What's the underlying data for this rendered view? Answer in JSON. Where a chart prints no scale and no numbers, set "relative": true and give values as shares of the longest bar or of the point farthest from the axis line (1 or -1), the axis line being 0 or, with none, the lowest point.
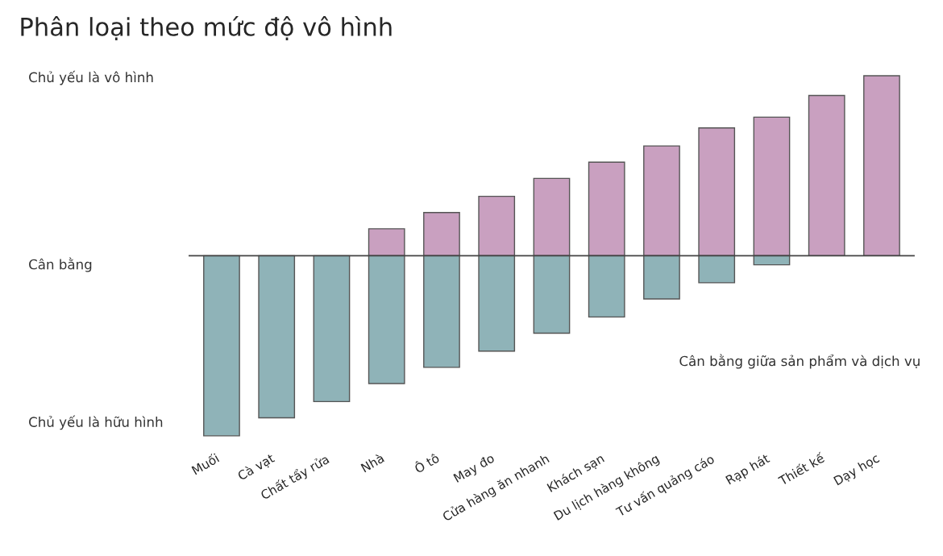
{
  "chart_data": {
    "type": "bar",
    "title": "Phân loại theo mức độ vô hình",
    "relative": true,
    "stacked": true,
    "grid": false,
    "legend": false,
    "categories": [
      "Muối",
      "Cà vạt",
      "Chất tẩy rửa",
      "Nhà",
      "Ô tô",
      "May đo",
      "Cửa hàng ăn nhanh",
      "Khách sạn",
      "Du lịch hàng không",
      "Tư vấn quảng cáo",
      "Rạp hát",
      "Thiết kế",
      "Dạy học"
    ],
    "series": [
      {
        "color": "#c9a0c0",
        "values": [
          null,
          null,
          null,
          0.15,
          0.24,
          0.33,
          0.43,
          0.52,
          0.61,
          0.71,
          0.77,
          0.89,
          1.0
        ]
      },
      {
        "color": "#8fb3b8",
        "values": [
          -1.0,
          -0.9,
          -0.81,
          -0.71,
          -0.62,
          -0.53,
          -0.43,
          -0.34,
          -0.24,
          -0.15,
          -0.05,
          null,
          null
        ]
      }
    ],
    "annotations": [
      "Chủ yếu là vô hình",
      "Cân bằng",
      "Chủ yếu là hữu hình",
      "Cân bằng giữa sản phẩm và dịch vụ"
    ]
  }
}
